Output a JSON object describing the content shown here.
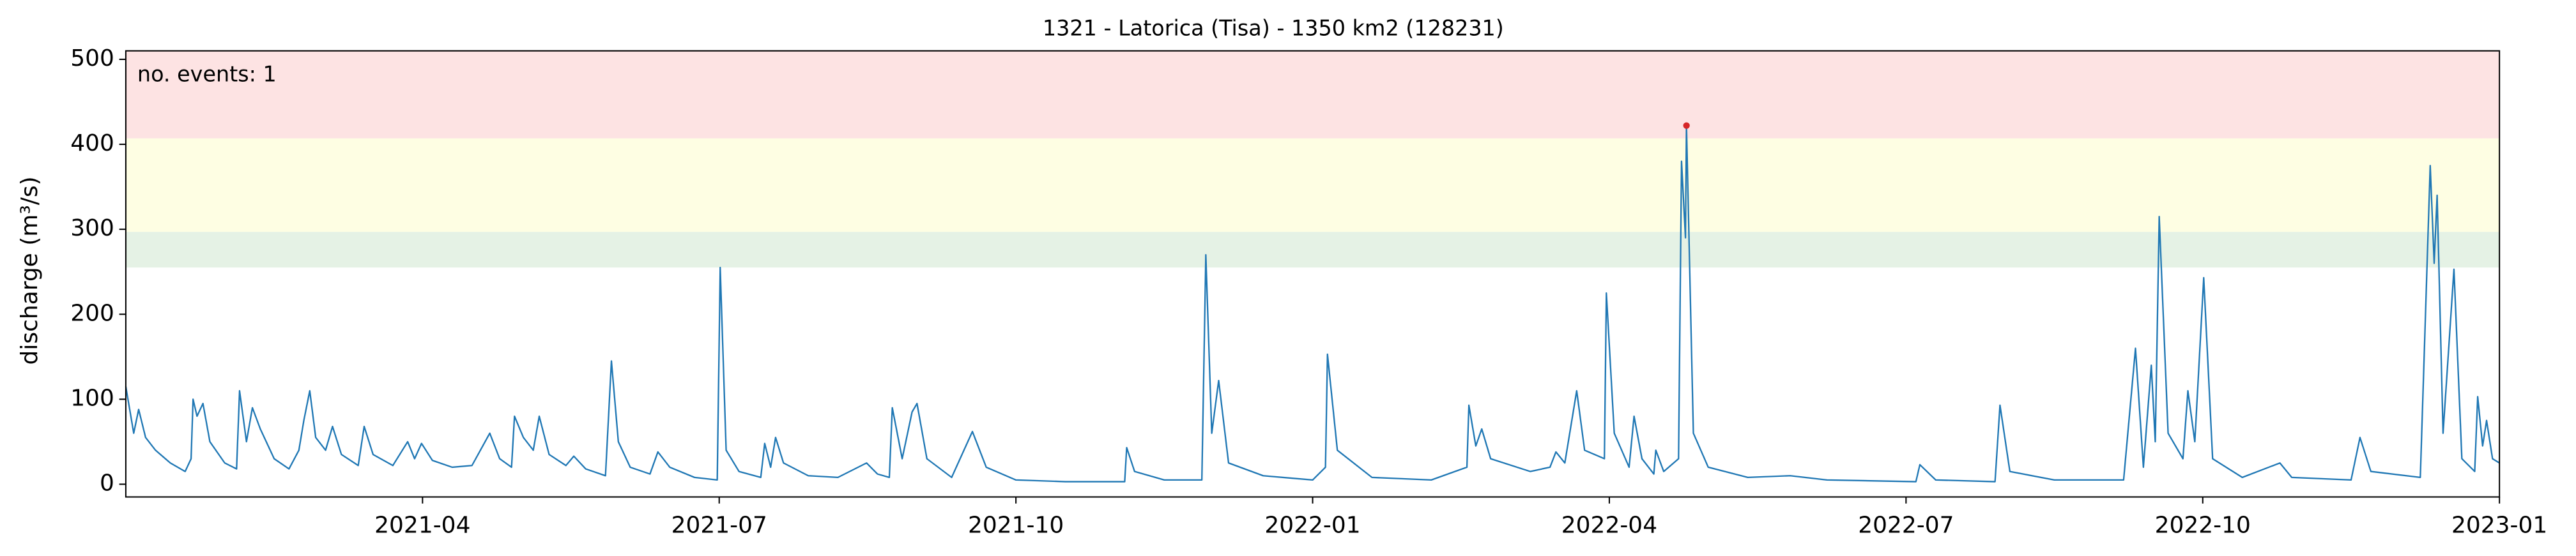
{
  "chart_data": {
    "type": "line",
    "title": "1321 - Latorica (Tisa) - 1350 km2 (128231)",
    "ylabel": "discharge (m³/s)",
    "annotation": "no. events: 1",
    "annotation_color": "#d62728",
    "xlim": [
      0,
      24
    ],
    "xticks": [
      {
        "value": 3,
        "label": "2021-04"
      },
      {
        "value": 6,
        "label": "2021-07"
      },
      {
        "value": 9,
        "label": "2021-10"
      },
      {
        "value": 12,
        "label": "2022-01"
      },
      {
        "value": 15,
        "label": "2022-04"
      },
      {
        "value": 18,
        "label": "2022-07"
      },
      {
        "value": 21,
        "label": "2022-10"
      },
      {
        "value": 24,
        "label": "2023-01"
      }
    ],
    "ylim": [
      -15,
      510
    ],
    "yticks": [
      0,
      100,
      200,
      300,
      400,
      500
    ],
    "bands": [
      {
        "from": 255,
        "to": 297,
        "color": "#e5f2e5"
      },
      {
        "from": 297,
        "to": 407,
        "color": "#fefee3"
      },
      {
        "from": 407,
        "to": 510,
        "color": "#fde3e3"
      }
    ],
    "events": {
      "x": [
        15.78
      ],
      "values": [
        422
      ],
      "color": "#d62728"
    },
    "series": [
      {
        "color": "#1f77b4",
        "x": [
          0,
          0.08,
          0.13,
          0.2,
          0.3,
          0.45,
          0.6,
          0.66,
          0.68,
          0.72,
          0.78,
          0.85,
          1.0,
          1.12,
          1.15,
          1.22,
          1.28,
          1.36,
          1.5,
          1.65,
          1.75,
          1.8,
          1.86,
          1.92,
          2.02,
          2.09,
          2.18,
          2.35,
          2.41,
          2.5,
          2.7,
          2.85,
          2.92,
          2.99,
          3.1,
          3.3,
          3.5,
          3.68,
          3.78,
          3.9,
          3.93,
          4.02,
          4.12,
          4.18,
          4.28,
          4.45,
          4.53,
          4.65,
          4.85,
          4.91,
          4.98,
          5.1,
          5.3,
          5.38,
          5.5,
          5.75,
          5.98,
          6.01,
          6.07,
          6.2,
          6.42,
          6.46,
          6.52,
          6.57,
          6.65,
          6.9,
          7.2,
          7.49,
          7.6,
          7.72,
          7.75,
          7.85,
          7.95,
          8.0,
          8.1,
          8.35,
          8.56,
          8.7,
          9.0,
          9.5,
          10.1,
          10.12,
          10.2,
          10.5,
          10.88,
          10.92,
          10.98,
          11.05,
          11.15,
          11.5,
          12.0,
          12.13,
          12.15,
          12.25,
          12.6,
          13.2,
          13.56,
          13.58,
          13.65,
          13.71,
          13.8,
          14.2,
          14.4,
          14.46,
          14.55,
          14.67,
          14.75,
          14.95,
          14.97,
          15.05,
          15.2,
          15.25,
          15.33,
          15.45,
          15.47,
          15.55,
          15.7,
          15.73,
          15.77,
          15.78,
          15.85,
          16.0,
          16.4,
          16.83,
          17.2,
          18.1,
          18.14,
          18.3,
          18.9,
          18.95,
          19.05,
          19.5,
          20.2,
          20.32,
          20.4,
          20.48,
          20.52,
          20.56,
          20.65,
          20.8,
          20.85,
          20.92,
          21.01,
          21.1,
          21.4,
          21.78,
          21.9,
          22.5,
          22.59,
          22.7,
          23.2,
          23.3,
          23.34,
          23.37,
          23.43,
          23.54,
          23.62,
          23.75,
          23.78,
          23.83,
          23.87,
          23.93,
          24
        ],
        "values": [
          115,
          60,
          88,
          55,
          40,
          25,
          15,
          30,
          100,
          80,
          95,
          50,
          25,
          18,
          110,
          50,
          90,
          65,
          30,
          18,
          40,
          75,
          110,
          55,
          40,
          68,
          35,
          22,
          68,
          35,
          22,
          50,
          30,
          48,
          28,
          20,
          22,
          60,
          30,
          20,
          80,
          55,
          40,
          80,
          35,
          22,
          33,
          18,
          10,
          145,
          50,
          20,
          12,
          38,
          20,
          8,
          5,
          255,
          40,
          15,
          8,
          48,
          20,
          55,
          25,
          10,
          8,
          25,
          12,
          8,
          90,
          30,
          85,
          95,
          30,
          8,
          62,
          20,
          5,
          3,
          3,
          43,
          15,
          5,
          5,
          270,
          60,
          122,
          25,
          10,
          5,
          20,
          153,
          40,
          8,
          5,
          20,
          93,
          45,
          65,
          30,
          15,
          20,
          38,
          25,
          110,
          40,
          30,
          225,
          60,
          20,
          80,
          30,
          12,
          40,
          15,
          30,
          380,
          290,
          422,
          60,
          20,
          8,
          10,
          5,
          3,
          23,
          5,
          3,
          93,
          15,
          5,
          5,
          160,
          20,
          140,
          50,
          315,
          60,
          30,
          110,
          50,
          243,
          30,
          8,
          25,
          8,
          5,
          55,
          15,
          8,
          375,
          260,
          340,
          60,
          253,
          30,
          15,
          103,
          45,
          75,
          30,
          25
        ]
      }
    ]
  }
}
